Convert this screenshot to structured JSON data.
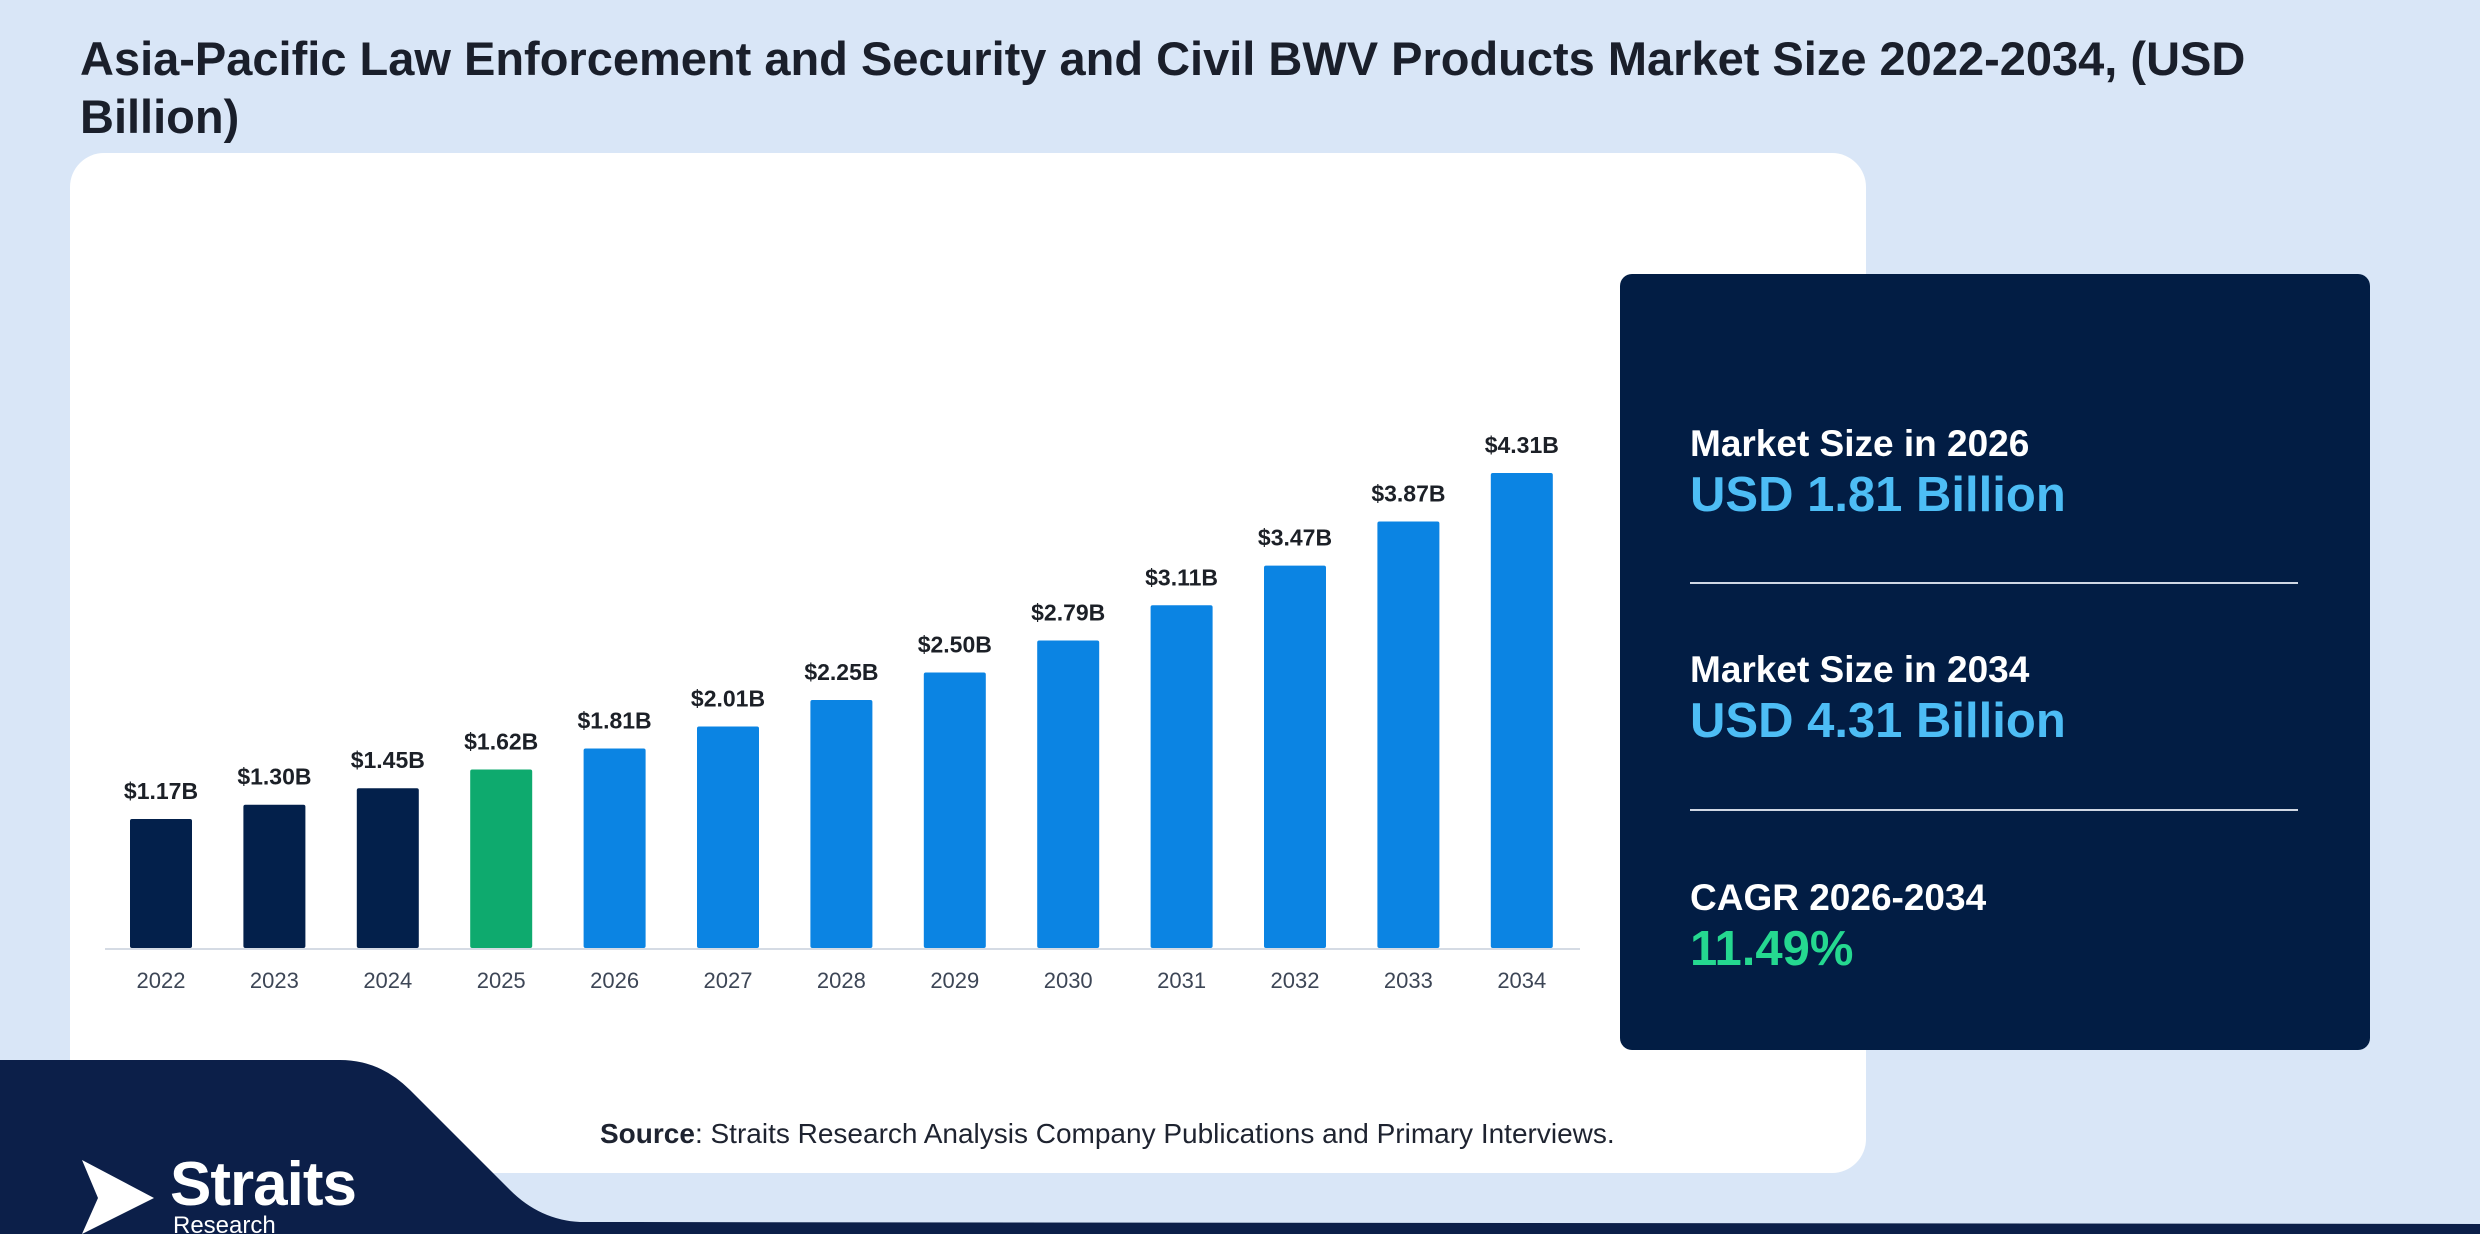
{
  "title": "Asia-Pacific Law Enforcement and Security and Civil BWV Products Market Size 2022-2034, (USD Billion)",
  "chart_data": {
    "type": "bar",
    "title": "Asia-Pacific Law Enforcement and Security and Civil BWV Products Market Size 2022-2034, (USD Billion)",
    "xlabel": "",
    "ylabel": "",
    "categories": [
      "2022",
      "2023",
      "2024",
      "2025",
      "2026",
      "2027",
      "2028",
      "2029",
      "2030",
      "2031",
      "2032",
      "2033",
      "2034"
    ],
    "values": [
      1.17,
      1.3,
      1.45,
      1.62,
      1.81,
      2.01,
      2.25,
      2.5,
      2.79,
      3.11,
      3.47,
      3.87,
      4.31
    ],
    "labels": [
      "$1.17B",
      "$1.30B",
      "$1.45B",
      "$1.62B",
      "$1.81B",
      "$2.01B",
      "$2.25B",
      "$2.50B",
      "$2.79B",
      "$3.11B",
      "$3.47B",
      "$3.87B",
      "$4.31B"
    ],
    "ylim": [
      0,
      4.31
    ],
    "grid": false,
    "colors": {
      "historical": "#03204b",
      "base_year": "#0eaa6e",
      "forecast": "#0b84e3"
    },
    "color_groups": [
      "historical",
      "historical",
      "historical",
      "base_year",
      "forecast",
      "forecast",
      "forecast",
      "forecast",
      "forecast",
      "forecast",
      "forecast",
      "forecast",
      "forecast"
    ]
  },
  "stats": {
    "size_2026": {
      "label": "Market Size in 2026",
      "value": "USD 1.81 Billion"
    },
    "size_2034": {
      "label": "Market Size in 2034",
      "value": "USD 4.31 Billion"
    },
    "cagr": {
      "label": "CAGR 2026-2034",
      "value": "11.49%"
    }
  },
  "source": {
    "prefix": "Source",
    "text": ": Straits Research Analysis Company Publications and Primary Interviews."
  },
  "logo": {
    "icon": "straits-arrow-icon",
    "name": "Straits",
    "sub": "Research"
  },
  "colors": {
    "background": "#d9e6f7",
    "panel": "#021d44",
    "accent_blue": "#4dbdf5",
    "accent_green": "#25d890"
  }
}
